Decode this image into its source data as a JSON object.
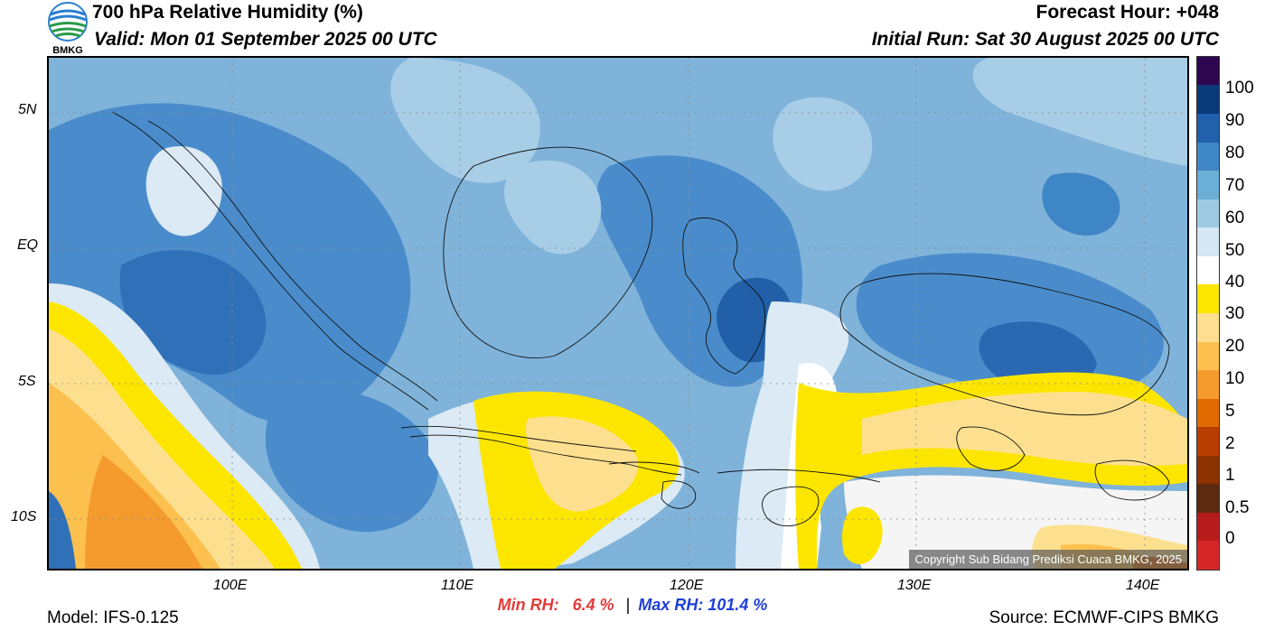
{
  "header": {
    "logo_text": "BMKG",
    "title": "700 hPa Relative Humidity (%)",
    "valid": "Valid: Mon 01 September 2025 00 UTC",
    "forecast_hour": "Forecast Hour: +048",
    "initial_run": "Initial Run: Sat 30 August 2025 00 UTC"
  },
  "map": {
    "lat_labels": [
      "5N",
      "EQ",
      "5S",
      "10S"
    ],
    "lon_labels": [
      "100E",
      "110E",
      "120E",
      "130E",
      "140E"
    ],
    "copyright": "Copyright Sub Bidang Prediksi Cuaca BMKG, 2025"
  },
  "colorbar": {
    "labels": [
      "100",
      "90",
      "80",
      "70",
      "60",
      "50",
      "40",
      "30",
      "20",
      "10",
      "5",
      "2",
      "1",
      "0.5",
      "0"
    ],
    "colors": [
      "#d62728",
      "#b71c1c",
      "#5c2a0e",
      "#8b3200",
      "#b83d00",
      "#e06a00",
      "#f59b2e",
      "#fcc04f",
      "#fde08f",
      "#fce600",
      "#ffffff",
      "#d6e8f4",
      "#9ecae1",
      "#6baed6",
      "#3f86c6",
      "#2060ac",
      "#0b3a7a",
      "#2e0650"
    ]
  },
  "stats": {
    "min_label": "Min RH:",
    "min_value": "6.4 %",
    "separator": "|",
    "max_label": "Max RH:",
    "max_value": "101.4 %"
  },
  "footer": {
    "model": "Model: IFS-0.125",
    "source": "Source: ECMWF-CIPS BMKG"
  }
}
